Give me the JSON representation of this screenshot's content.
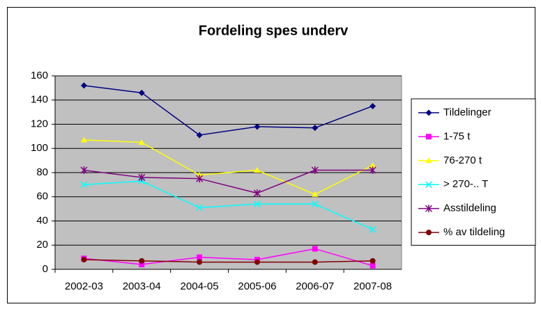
{
  "chart_data": {
    "type": "line",
    "title": "Fordeling spes underv",
    "categories": [
      "2002-03",
      "2003-04",
      "2004-05",
      "2005-06",
      "2006-07",
      "2007-08"
    ],
    "series": [
      {
        "name": "Tildelinger",
        "color": "#000080",
        "marker": "diamond",
        "values": [
          152,
          146,
          111,
          118,
          117,
          135
        ]
      },
      {
        "name": "1-75 t",
        "color": "#ff00ff",
        "marker": "square",
        "values": [
          9,
          4,
          10,
          8,
          17,
          3
        ]
      },
      {
        "name": "76-270 t",
        "color": "#ffff00",
        "marker": "triangle",
        "values": [
          107,
          105,
          78,
          82,
          62,
          86
        ]
      },
      {
        "name": "> 270-.. T",
        "color": "#00ffff",
        "marker": "x",
        "values": [
          70,
          73,
          51,
          54,
          54,
          33
        ]
      },
      {
        "name": "Asstildeling",
        "color": "#800080",
        "marker": "star",
        "values": [
          82,
          76,
          75,
          63,
          82,
          82
        ]
      },
      {
        "name": "% av tildeling",
        "color": "#800000",
        "marker": "circle",
        "values": [
          8,
          7,
          6,
          6,
          6,
          7
        ]
      }
    ],
    "ylim": [
      0,
      160
    ],
    "yticks": [
      0,
      20,
      40,
      60,
      80,
      100,
      120,
      140,
      160
    ],
    "grid": true,
    "legend": "right",
    "plot_background": "#c0c0c0"
  }
}
